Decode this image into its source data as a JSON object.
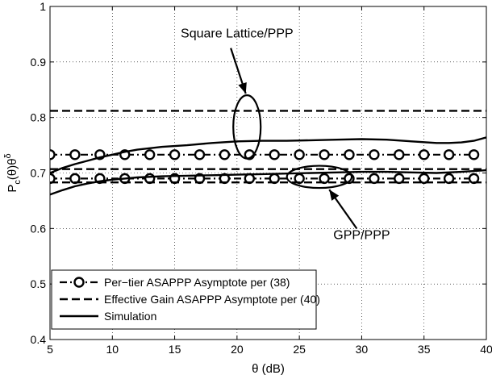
{
  "chart_data": {
    "type": "line",
    "xlabel": "θ (dB)",
    "ylabel": "P_c(θ)θ^δ",
    "xlim": [
      5,
      40
    ],
    "ylim": [
      0.4,
      1.0
    ],
    "xticks": [
      5,
      10,
      15,
      20,
      25,
      30,
      35,
      40
    ],
    "yticks": [
      0.4,
      0.5,
      0.6,
      0.7,
      0.8,
      0.9,
      1.0
    ],
    "xtick_labels": [
      "5",
      "10",
      "15",
      "20",
      "25",
      "30",
      "35",
      "40"
    ],
    "ytick_labels": [
      "0.4",
      "0.5",
      "0.6",
      "0.7",
      "0.8",
      "0.9",
      "1"
    ],
    "grid": true,
    "legend_position": "bottom-left",
    "series": [
      {
        "name": "Per−tier ASAPPP Asymptote per (38)",
        "style": "dash-dot-circle",
        "color": "#000000",
        "lines": [
          {
            "x": [
              5,
              7,
              9,
              11,
              13,
              15,
              17,
              19,
              21,
              23,
              25,
              27,
              29,
              31,
              33,
              35,
              37,
              39
            ],
            "y": [
              0.733,
              0.733,
              0.733,
              0.733,
              0.733,
              0.733,
              0.733,
              0.733,
              0.733,
              0.733,
              0.733,
              0.733,
              0.733,
              0.733,
              0.733,
              0.733,
              0.733,
              0.733
            ]
          },
          {
            "x": [
              5,
              7,
              9,
              11,
              13,
              15,
              17,
              19,
              21,
              23,
              25,
              27,
              29,
              31,
              33,
              35,
              37,
              39
            ],
            "y": [
              0.69,
              0.69,
              0.69,
              0.69,
              0.69,
              0.69,
              0.69,
              0.69,
              0.69,
              0.69,
              0.69,
              0.69,
              0.69,
              0.69,
              0.69,
              0.69,
              0.69,
              0.69
            ]
          }
        ]
      },
      {
        "name": "Effective Gain ASAPPP Asymptote per (40)",
        "style": "dashed",
        "color": "#000000",
        "lines": [
          {
            "x": [
              5,
              40
            ],
            "y": [
              0.812,
              0.812
            ]
          },
          {
            "x": [
              5,
              40
            ],
            "y": [
              0.707,
              0.707
            ]
          },
          {
            "x": [
              5,
              40
            ],
            "y": [
              0.683,
              0.683
            ]
          }
        ]
      },
      {
        "name": "Simulation",
        "style": "solid",
        "color": "#000000",
        "lines": [
          {
            "x": [
              5,
              6,
              7,
              8,
              9,
              10,
              11,
              12,
              14,
              16,
              18,
              20,
              22,
              24,
              26,
              28,
              30,
              32,
              34,
              36,
              37,
              38,
              39,
              40
            ],
            "y": [
              0.7,
              0.709,
              0.716,
              0.722,
              0.728,
              0.733,
              0.738,
              0.742,
              0.747,
              0.75,
              0.754,
              0.757,
              0.758,
              0.758,
              0.759,
              0.76,
              0.761,
              0.76,
              0.757,
              0.754,
              0.754,
              0.755,
              0.758,
              0.764
            ]
          },
          {
            "x": [
              5,
              6,
              7,
              8,
              9,
              10,
              11,
              12,
              14,
              16,
              18,
              20,
              22,
              24,
              26,
              28,
              30,
              32,
              34,
              36,
              38,
              40
            ],
            "y": [
              0.661,
              0.669,
              0.676,
              0.681,
              0.685,
              0.688,
              0.69,
              0.692,
              0.694,
              0.695,
              0.696,
              0.697,
              0.698,
              0.699,
              0.7,
              0.701,
              0.702,
              0.702,
              0.701,
              0.7,
              0.702,
              0.705
            ]
          }
        ]
      }
    ],
    "annotations": [
      {
        "text": "Square Lattice/PPP",
        "ellipse": {
          "cx": 20.8,
          "cy": 0.783,
          "rx": 1.1,
          "ry": 0.057
        },
        "label_at": {
          "x": 20.0,
          "y": 0.944
        },
        "arrow_from": {
          "x": 19.5,
          "y": 0.925
        },
        "arrow_to": {
          "x": 20.7,
          "y": 0.843
        }
      },
      {
        "text": "GPP/PPP",
        "ellipse": {
          "cx": 26.6,
          "cy": 0.693,
          "rx": 2.6,
          "ry": 0.02
        },
        "label_at": {
          "x": 30.0,
          "y": 0.581
        },
        "arrow_from": {
          "x": 29.6,
          "y": 0.6
        },
        "arrow_to": {
          "x": 27.4,
          "y": 0.67
        }
      }
    ]
  }
}
